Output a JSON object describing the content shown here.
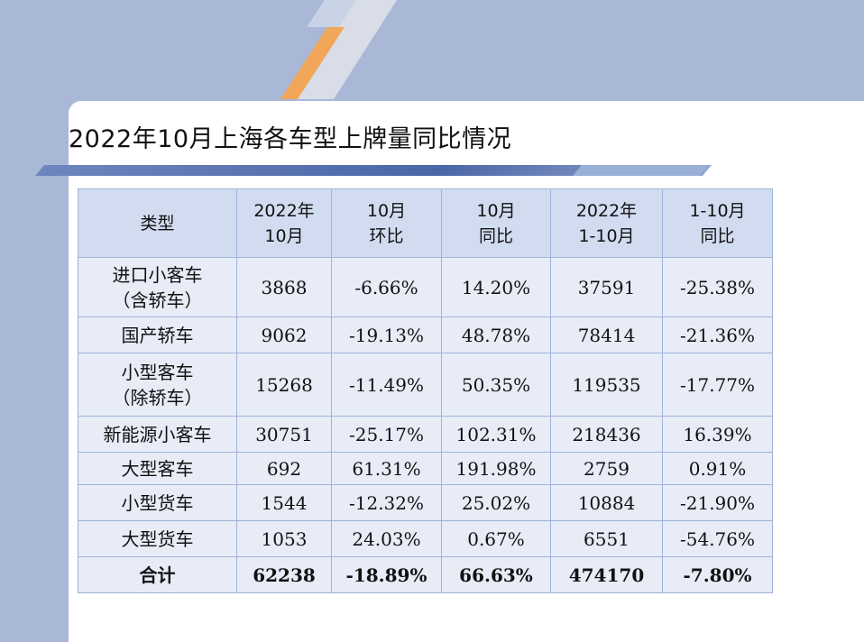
{
  "title": "2022年10月上海各车型上牌量同比情况",
  "table": {
    "headers": [
      [
        "类型"
      ],
      [
        "2022年",
        "10月"
      ],
      [
        "10月",
        "环比"
      ],
      [
        "10月",
        "同比"
      ],
      [
        "2022年",
        "1-10月"
      ],
      [
        "1-10月",
        "同比"
      ]
    ],
    "rows": [
      {
        "name": [
          "进口小客车",
          "（含轿车）"
        ],
        "values": [
          "3868",
          "-6.66%",
          "14.20%",
          "37591",
          "-25.38%"
        ]
      },
      {
        "name": [
          "国产轿车"
        ],
        "values": [
          "9062",
          "-19.13%",
          "48.78%",
          "78414",
          "-21.36%"
        ]
      },
      {
        "name": [
          "小型客车",
          "（除轿车）"
        ],
        "values": [
          "15268",
          "-11.49%",
          "50.35%",
          "119535",
          "-17.77%"
        ]
      },
      {
        "name": [
          "新能源小客车"
        ],
        "values": [
          "30751",
          "-25.17%",
          "102.31%",
          "218436",
          "16.39%"
        ]
      },
      {
        "name": [
          "大型客车"
        ],
        "values": [
          "692",
          "61.31%",
          "191.98%",
          "2759",
          "0.91%"
        ]
      },
      {
        "name": [
          "小型货车"
        ],
        "values": [
          "1544",
          "-12.32%",
          "25.02%",
          "10884",
          "-21.90%"
        ]
      },
      {
        "name": [
          "大型货车"
        ],
        "values": [
          "1053",
          "24.03%",
          "0.67%",
          "6551",
          "-54.76%"
        ]
      }
    ],
    "total": {
      "name": "合计",
      "values": [
        "62238",
        "-18.89%",
        "66.63%",
        "474170",
        "-7.80%"
      ]
    }
  }
}
